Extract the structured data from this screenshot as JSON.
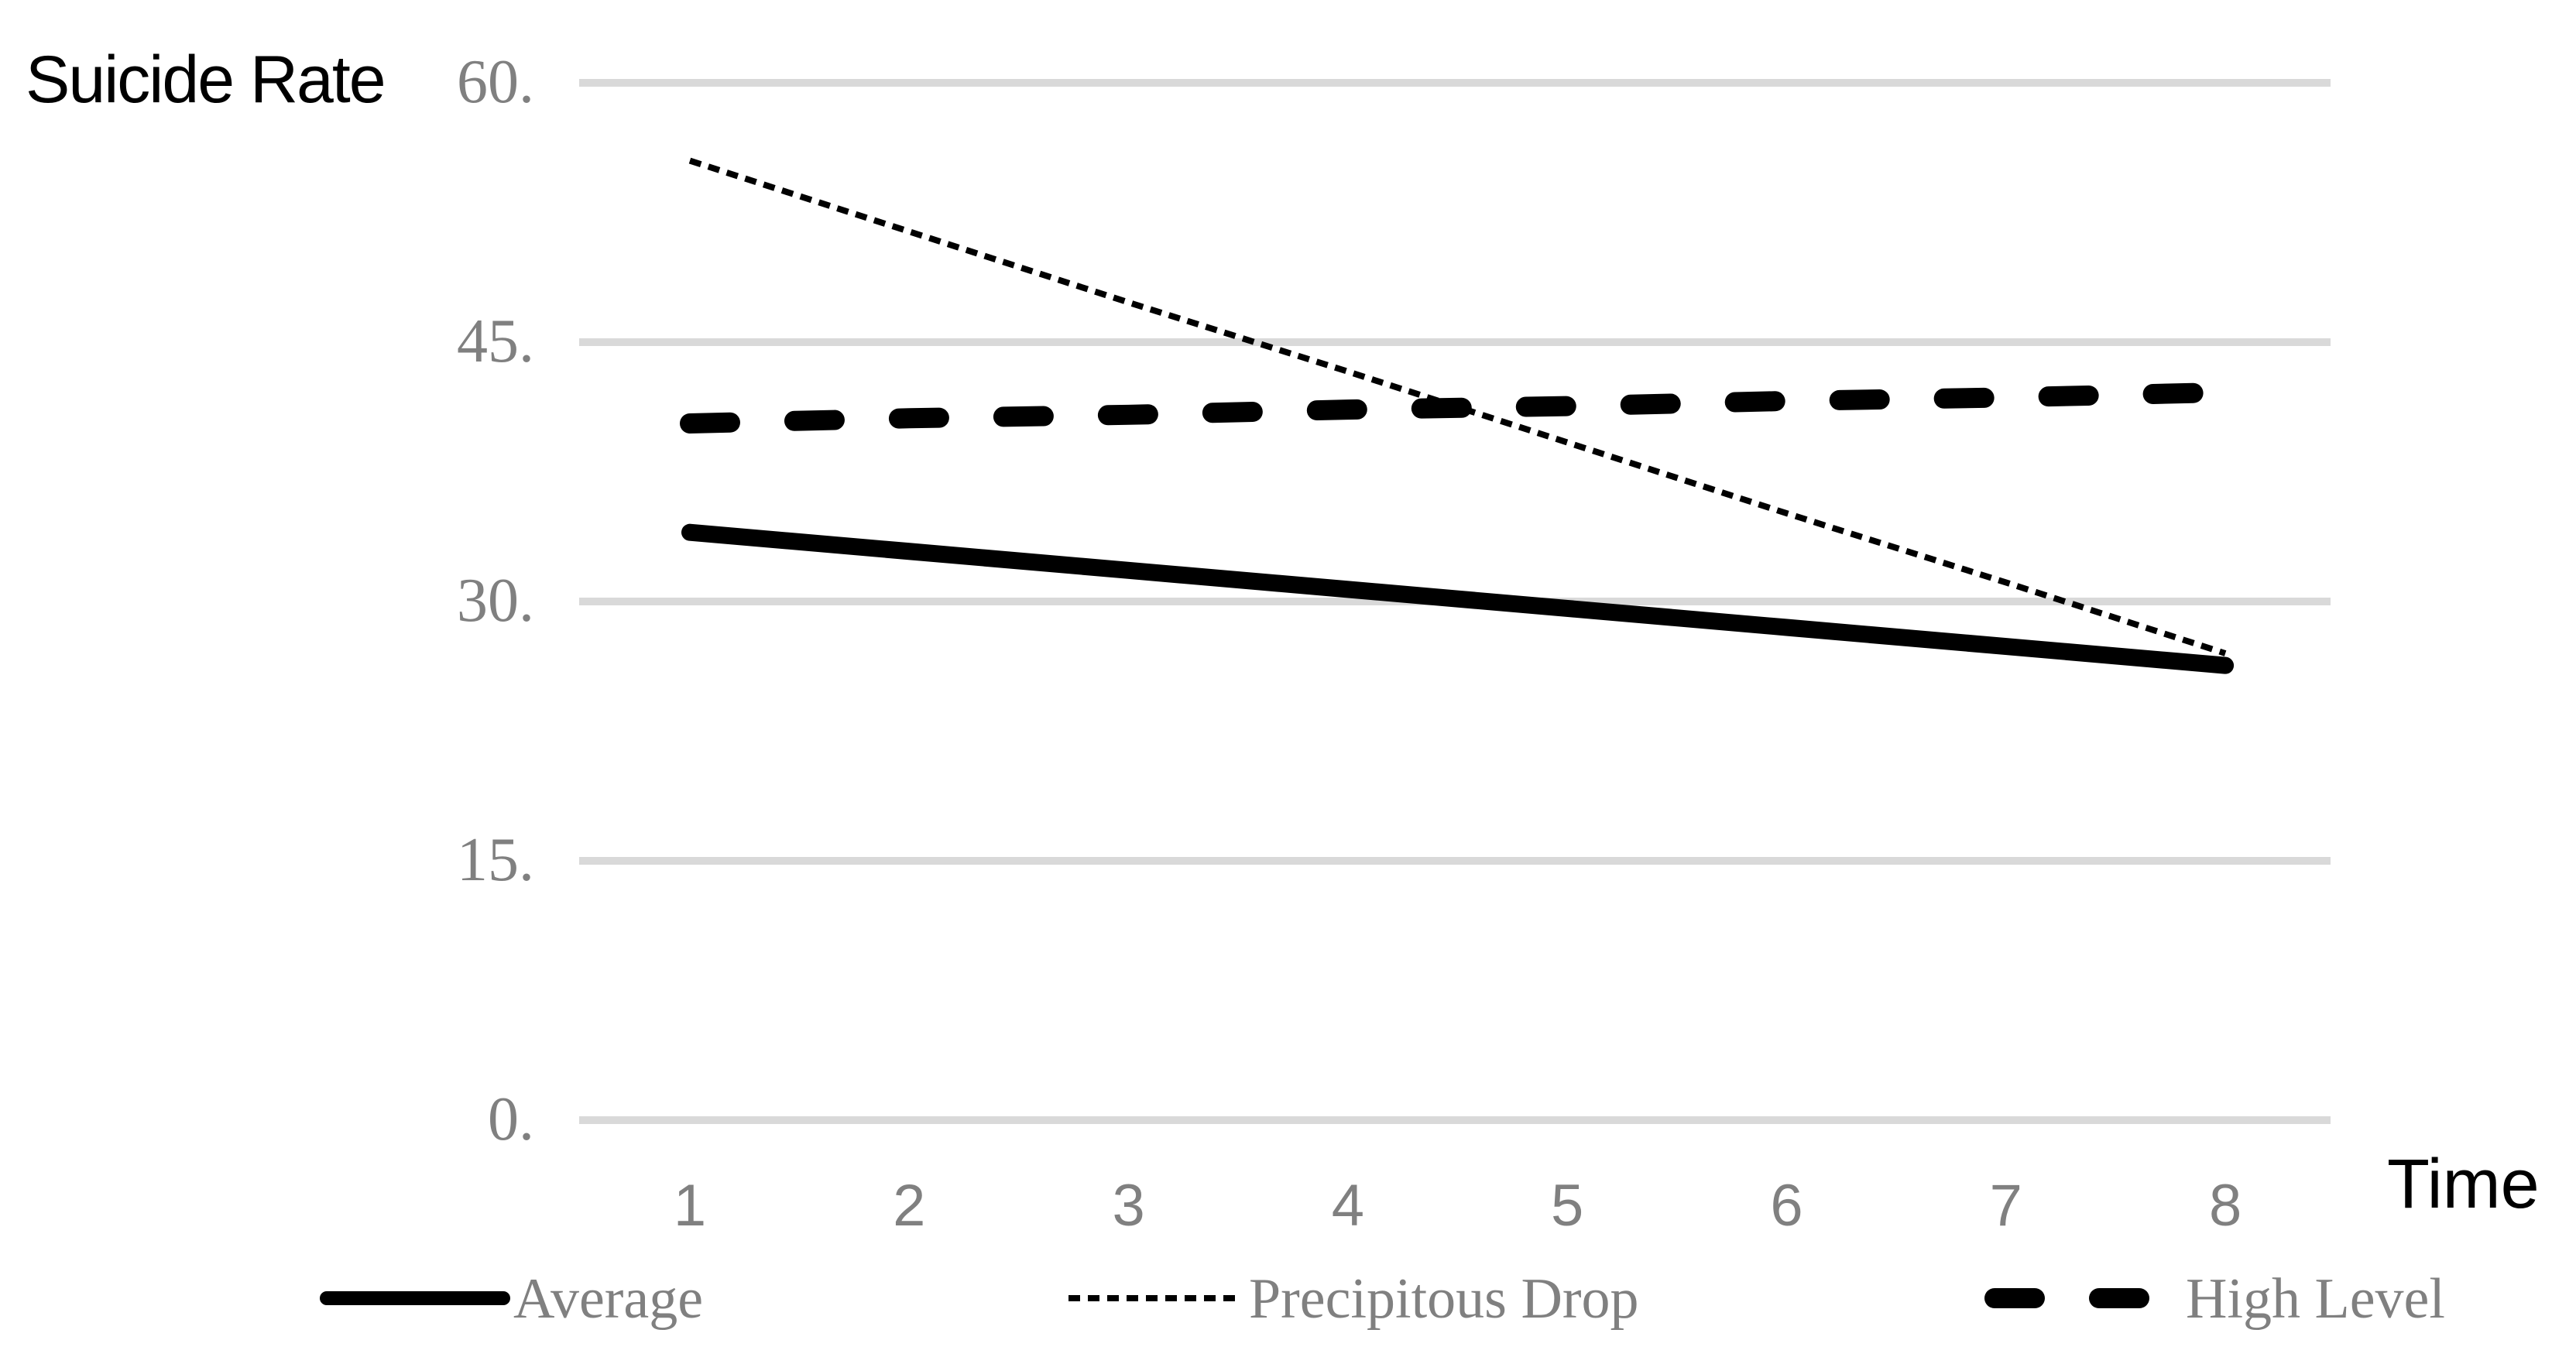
{
  "labels": {
    "y_axis_title": "Suicide Rate",
    "x_axis_title": "Time"
  },
  "colors": {
    "series": "#000000",
    "axis_text": "#808080",
    "gridline": "#d9d9d9",
    "title_text": "#000000",
    "background": "#ffffff"
  },
  "chart_data": {
    "type": "line",
    "title": "",
    "xlabel": "Time",
    "ylabel": "Suicide Rate",
    "x": [
      1,
      2,
      3,
      4,
      5,
      6,
      7,
      8
    ],
    "x_ticks": [
      {
        "label": "1",
        "value": 1
      },
      {
        "label": "2",
        "value": 2
      },
      {
        "label": "3",
        "value": 3
      },
      {
        "label": "4",
        "value": 4
      },
      {
        "label": "5",
        "value": 5
      },
      {
        "label": "6",
        "value": 6
      },
      {
        "label": "7",
        "value": 7
      },
      {
        "label": "8",
        "value": 8
      }
    ],
    "y_ticks": [
      {
        "label": "60.",
        "value": 60
      },
      {
        "label": "45.",
        "value": 45
      },
      {
        "label": "30.",
        "value": 30
      },
      {
        "label": "15.",
        "value": 15
      },
      {
        "label": "0.",
        "value": 0
      }
    ],
    "ylim": [
      0,
      60
    ],
    "grid": "horizontal-only",
    "legend_position": "bottom",
    "series": [
      {
        "name": "Average",
        "style": "solid-thick",
        "values": [
          34.0,
          32.9,
          31.8,
          30.7,
          29.6,
          28.5,
          27.4,
          26.3
        ]
      },
      {
        "name": "Precipitous Drop",
        "style": "dotted",
        "values": [
          55.5,
          51.4,
          47.3,
          43.3,
          39.2,
          35.1,
          31.1,
          27.0
        ]
      },
      {
        "name": "High Level",
        "style": "dashed-thick",
        "values": [
          40.3,
          40.6,
          40.8,
          41.1,
          41.3,
          41.6,
          41.8,
          42.1
        ]
      }
    ]
  }
}
